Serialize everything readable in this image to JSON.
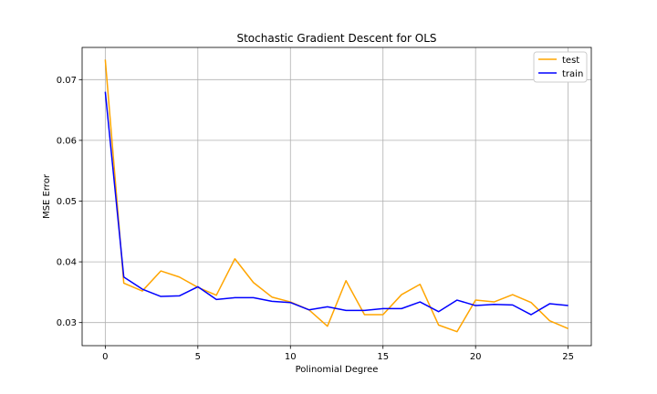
{
  "chart_data": {
    "type": "line",
    "title": "Stochastic Gradient Descent for OLS",
    "xlabel": "Polinomial Degree",
    "ylabel": "MSE Error",
    "xlim": [
      -1.25,
      26.25
    ],
    "ylim": [
      0.0262,
      0.0753
    ],
    "xticks": [
      0,
      5,
      10,
      15,
      20,
      25
    ],
    "xtick_labels": [
      "0",
      "5",
      "10",
      "15",
      "20",
      "25"
    ],
    "yticks": [
      0.03,
      0.04,
      0.05,
      0.06,
      0.07
    ],
    "ytick_labels": [
      "0.03",
      "0.04",
      "0.05",
      "0.06",
      "0.07"
    ],
    "grid": true,
    "legend_position": "top-right",
    "x": [
      0,
      1,
      2,
      3,
      4,
      5,
      6,
      7,
      8,
      9,
      10,
      11,
      12,
      13,
      14,
      15,
      16,
      17,
      18,
      19,
      20,
      21,
      22,
      23,
      24,
      25
    ],
    "series": [
      {
        "name": "test",
        "color": "#FFA500",
        "values": [
          0.0733,
          0.0365,
          0.0352,
          0.0385,
          0.0375,
          0.0358,
          0.0345,
          0.0405,
          0.0366,
          0.0342,
          0.0334,
          0.0321,
          0.0294,
          0.0369,
          0.0313,
          0.0313,
          0.0346,
          0.0363,
          0.0296,
          0.0285,
          0.0337,
          0.0334,
          0.0346,
          0.0333,
          0.0303,
          0.029
        ]
      },
      {
        "name": "train",
        "color": "#0000FF",
        "values": [
          0.068,
          0.0375,
          0.0355,
          0.0343,
          0.0344,
          0.0359,
          0.0338,
          0.0341,
          0.0341,
          0.0335,
          0.0333,
          0.0321,
          0.0326,
          0.032,
          0.032,
          0.0323,
          0.0323,
          0.0334,
          0.0318,
          0.0337,
          0.0328,
          0.033,
          0.0329,
          0.0313,
          0.0331,
          0.0328
        ]
      }
    ]
  }
}
